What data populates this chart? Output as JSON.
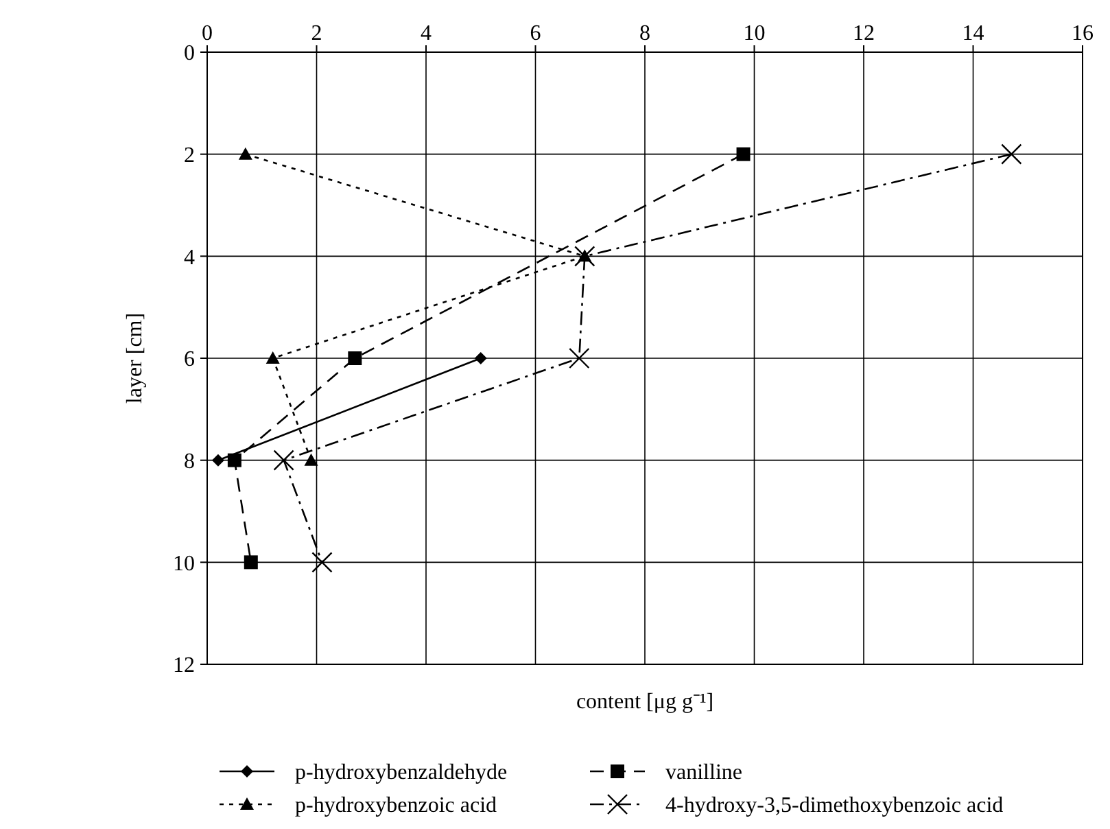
{
  "chart_data": {
    "type": "line",
    "xlabel": "content [μg g⁻¹]",
    "ylabel": "layer [cm]",
    "xlim": [
      0,
      16
    ],
    "xticks": [
      0,
      2,
      4,
      6,
      8,
      10,
      12,
      14,
      16
    ],
    "ylim": [
      12,
      0
    ],
    "yticks": [
      0,
      2,
      4,
      6,
      8,
      10,
      12
    ],
    "grid": true,
    "legend": "bottom",
    "series": [
      {
        "name": "p-hydroxybenzaldehyde",
        "color": "#000000",
        "marker": "diamond",
        "line_style": "solid",
        "x": [
          5.0,
          0.2
        ],
        "values": [
          6,
          8
        ]
      },
      {
        "name": "vanilline",
        "color": "#000000",
        "marker": "square",
        "line_style": "dashed",
        "x": [
          9.8,
          2.7,
          0.5,
          0.8
        ],
        "values": [
          2,
          6,
          8,
          10
        ]
      },
      {
        "name": "p-hydroxybenzoic acid",
        "color": "#000000",
        "marker": "triangle",
        "line_style": "dotted",
        "x": [
          0.7,
          6.9,
          1.2,
          1.9
        ],
        "values": [
          2,
          4,
          6,
          8
        ]
      },
      {
        "name": "4-hydroxy-3,5-dimethoxybenzoic acid",
        "color": "#000000",
        "marker": "cross",
        "line_style": "dashdot",
        "x": [
          14.7,
          6.9,
          6.8,
          1.4,
          2.1
        ],
        "values": [
          2,
          4,
          6,
          8,
          10
        ]
      }
    ]
  }
}
